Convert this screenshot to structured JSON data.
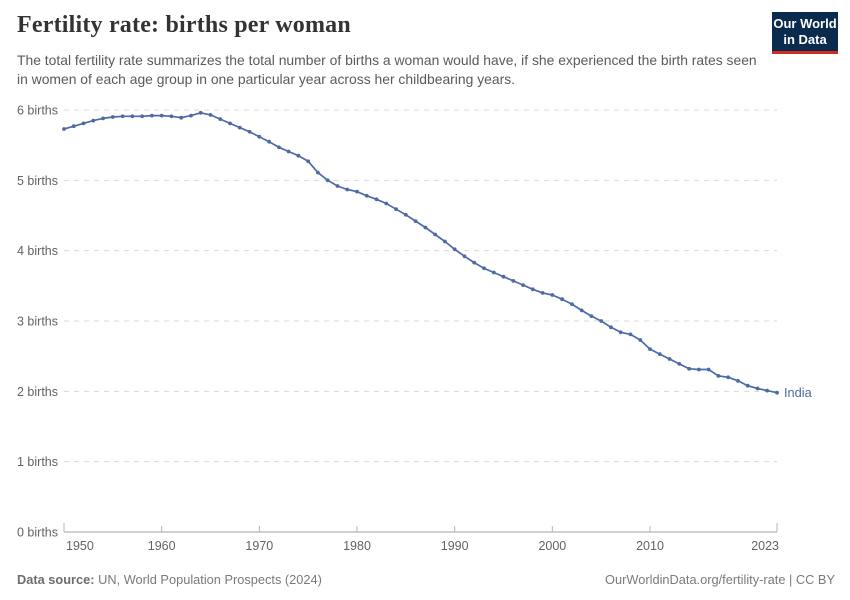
{
  "header": {
    "title": "Fertility rate: births per woman",
    "subtitle": "The total fertility rate summarizes the total number of births a woman would have, if she experienced the birth rates seen in women of each age group in one particular year across her childbearing years."
  },
  "logo": {
    "line1": "Our World",
    "line2": "in Data",
    "bg_color": "#0a2b4e",
    "accent_color": "#d32b1e"
  },
  "chart_data": {
    "type": "line",
    "title": "Fertility rate: births per woman",
    "xlabel": "",
    "ylabel": "",
    "xlim": [
      1950,
      2023
    ],
    "ylim": [
      0,
      6
    ],
    "grid": "horizontal-dashed",
    "x_ticks": [
      1950,
      1960,
      1970,
      1980,
      1990,
      2000,
      2010,
      2023
    ],
    "y_ticks": [
      {
        "value": 0,
        "label": "0 births"
      },
      {
        "value": 1,
        "label": "1 births"
      },
      {
        "value": 2,
        "label": "2 births"
      },
      {
        "value": 3,
        "label": "3 births"
      },
      {
        "value": 4,
        "label": "4 births"
      },
      {
        "value": 5,
        "label": "5 births"
      },
      {
        "value": 6,
        "label": "6 births"
      }
    ],
    "series": [
      {
        "name": "India",
        "color": "#4c6aa5",
        "x": [
          1950,
          1951,
          1952,
          1953,
          1954,
          1955,
          1956,
          1957,
          1958,
          1959,
          1960,
          1961,
          1962,
          1963,
          1964,
          1965,
          1966,
          1967,
          1968,
          1969,
          1970,
          1971,
          1972,
          1973,
          1974,
          1975,
          1976,
          1977,
          1978,
          1979,
          1980,
          1981,
          1982,
          1983,
          1984,
          1985,
          1986,
          1987,
          1988,
          1989,
          1990,
          1991,
          1992,
          1993,
          1994,
          1995,
          1996,
          1997,
          1998,
          1999,
          2000,
          2001,
          2002,
          2003,
          2004,
          2005,
          2006,
          2007,
          2008,
          2009,
          2010,
          2011,
          2012,
          2013,
          2014,
          2015,
          2016,
          2017,
          2018,
          2019,
          2020,
          2021,
          2022,
          2023
        ],
        "values": [
          5.73,
          5.77,
          5.81,
          5.85,
          5.88,
          5.9,
          5.91,
          5.91,
          5.91,
          5.92,
          5.92,
          5.91,
          5.89,
          5.92,
          5.96,
          5.93,
          5.87,
          5.81,
          5.75,
          5.69,
          5.62,
          5.55,
          5.47,
          5.41,
          5.35,
          5.27,
          5.11,
          5.0,
          4.92,
          4.87,
          4.84,
          4.78,
          4.73,
          4.67,
          4.59,
          4.51,
          4.42,
          4.33,
          4.23,
          4.13,
          4.02,
          3.92,
          3.83,
          3.75,
          3.69,
          3.63,
          3.57,
          3.51,
          3.45,
          3.4,
          3.37,
          3.31,
          3.24,
          3.15,
          3.07,
          3.0,
          2.91,
          2.84,
          2.81,
          2.73,
          2.6,
          2.53,
          2.46,
          2.39,
          2.32,
          2.31,
          2.31,
          2.22,
          2.2,
          2.15,
          2.08,
          2.04,
          2.01,
          1.98
        ]
      }
    ],
    "end_label": "India"
  },
  "footer": {
    "source_label": "Data source:",
    "source_text": "UN, World Population Prospects (2024)",
    "credit": "OurWorldinData.org/fertility-rate | CC BY"
  }
}
